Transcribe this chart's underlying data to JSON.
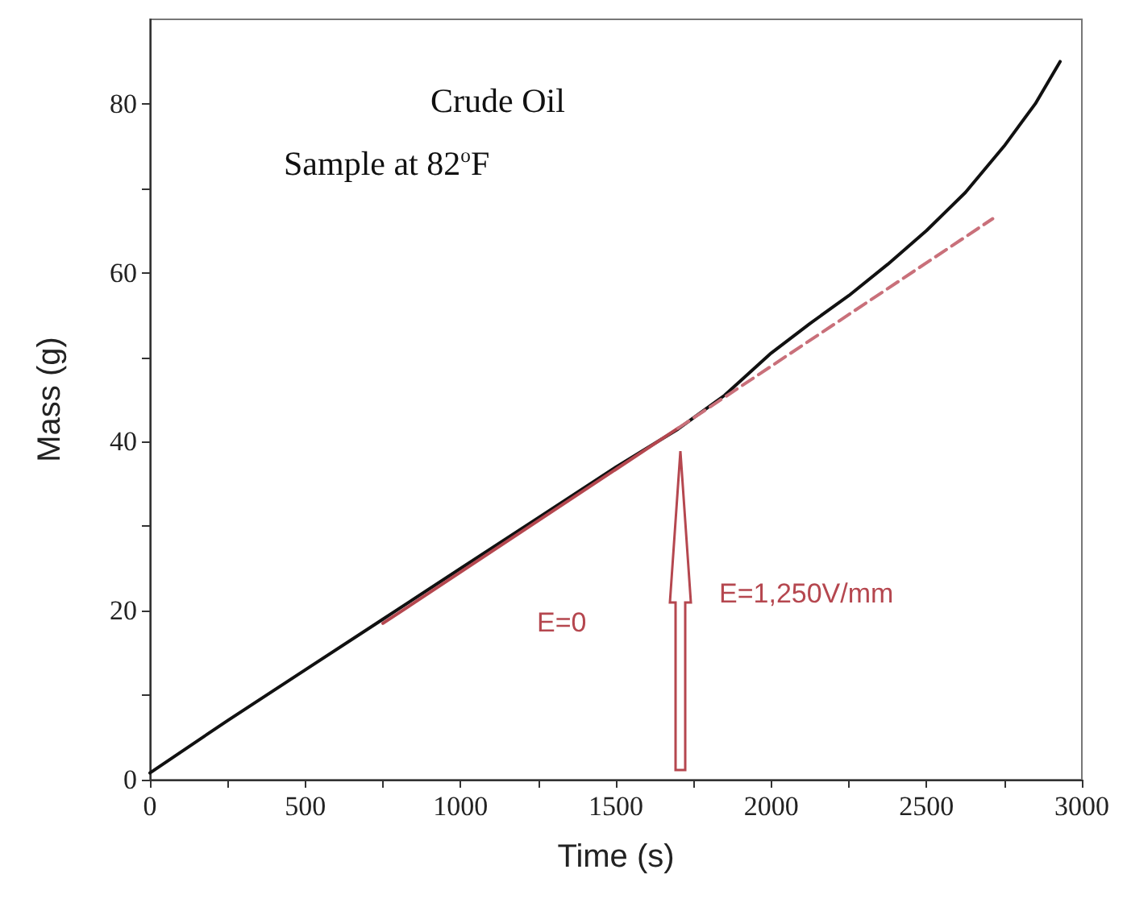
{
  "chart_data": {
    "type": "line",
    "xlabel": "Time (s)",
    "ylabel": "Mass (g)",
    "xlim": [
      0,
      3000
    ],
    "ylim": [
      0,
      90
    ],
    "xticks": [
      0,
      {
        "value": 250,
        "label": null
      },
      500,
      {
        "value": 750,
        "label": null
      },
      1000,
      {
        "value": 1250,
        "label": null
      },
      1500,
      {
        "value": 1750,
        "label": null
      },
      2000,
      {
        "value": 2250,
        "label": null
      },
      2500,
      {
        "value": 2750,
        "label": null
      },
      3000
    ],
    "yticks": [
      0,
      {
        "value": 10,
        "label": null
      },
      20,
      {
        "value": 30,
        "label": null
      },
      40,
      {
        "value": 50,
        "label": null
      },
      60,
      {
        "value": 70,
        "label": null
      },
      80
    ],
    "grid": false,
    "marker": "none",
    "series": [
      {
        "color": "#111111",
        "x": [
          0,
          250,
          500,
          750,
          1000,
          1250,
          1500,
          1700,
          1850,
          2000,
          2125,
          2250,
          2375,
          2500,
          2625,
          2750,
          2850,
          2930
        ],
        "values": [
          0.8,
          7,
          13,
          19,
          25,
          31,
          37,
          41.5,
          45.5,
          50.5,
          54,
          57.3,
          61,
          65,
          69.5,
          75,
          80,
          85
        ]
      },
      {
        "color": "#b5474f",
        "x": [
          750,
          1700
        ],
        "values": [
          18.5,
          41.6
        ]
      },
      {
        "color": "#c9707a",
        "line_style": "dashed",
        "x": [
          1700,
          2713
        ],
        "values": [
          41.6,
          66.4
        ]
      }
    ],
    "annotations": [
      "Crude Oil",
      "Sample at 82$^{o}$F",
      "E=0",
      "E=1,250V/mm"
    ]
  }
}
